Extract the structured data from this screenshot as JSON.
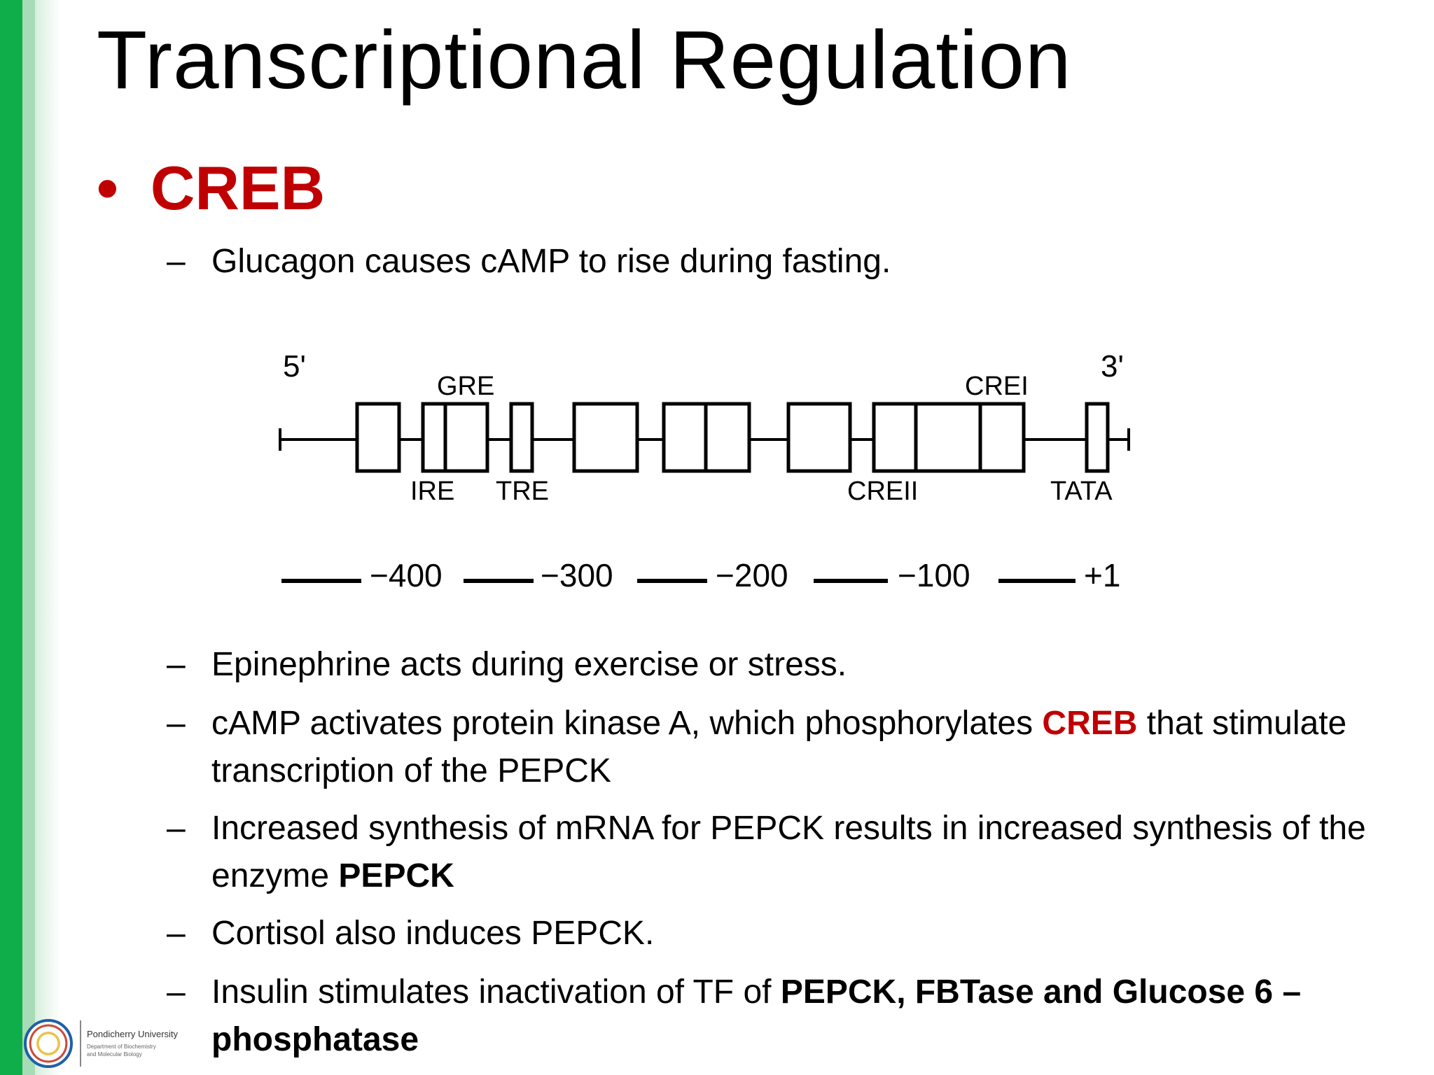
{
  "slide": {
    "title": "Transcriptional Regulation",
    "bullet": {
      "marker": "•",
      "label": "CREB"
    },
    "dash": "–",
    "items": [
      {
        "text": "Glucagon causes cAMP to rise during fasting."
      },
      {
        "text": "Epinephrine acts during exercise or stress."
      },
      {
        "pre": "cAMP activates protein kinase A, which phosphorylates ",
        "highlight": "CREB",
        "post": " that stimulate transcription of the PEPCK"
      },
      {
        "pre": "Increased synthesis of mRNA for PEPCK results in increased synthesis of the enzyme ",
        "bold": "PEPCK"
      },
      {
        "text": "Cortisol also induces PEPCK."
      },
      {
        "pre": "Insulin stimulates inactivation of TF of ",
        "bold": "PEPCK, FBTase and Glucose 6 – phosphatase"
      }
    ]
  },
  "diagram": {
    "end5": "5'",
    "end3": "3'",
    "top_labels": {
      "gre": "GRE",
      "crei": "CREI"
    },
    "bottom_labels": {
      "ire": "IRE",
      "tre": "TRE",
      "creii": "CREII",
      "tata": "TATA"
    },
    "scale": [
      "−400",
      "−300",
      "−200",
      "−100",
      "+1"
    ]
  },
  "logo": {
    "university": "Pondicherry University",
    "department_line1": "Department of Biochemistry",
    "department_line2": "and Molecular Biology"
  }
}
